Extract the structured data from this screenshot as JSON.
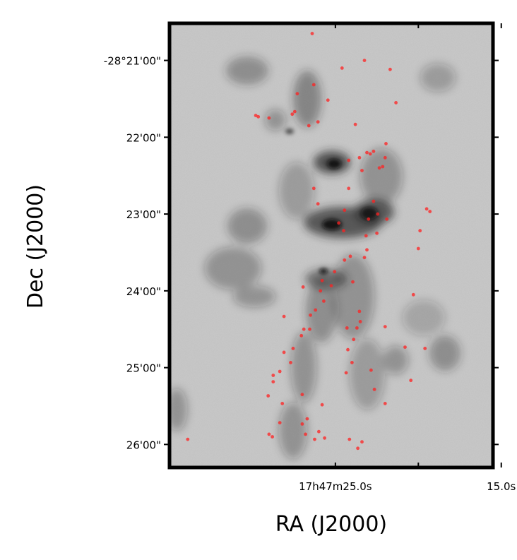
{
  "chart_data": {
    "type": "scatter",
    "title": "",
    "xlabel": "RA (J2000)",
    "ylabel": "Dec (J2000)",
    "x_unit": "arcsec offset (RA, increasing to the right = decreasing RA)",
    "xlim": [
      -20.0,
      19.0
    ],
    "ylim": [
      -29.0,
      318.0
    ],
    "x_ticks": [
      {
        "value": 0.0,
        "label": "17h47m25.0s"
      },
      {
        "value": 10.0,
        "label": ""
      },
      {
        "value": 20.0,
        "label": "15.0s"
      }
    ],
    "y_ticks": [
      {
        "value": 0,
        "label": "-28°21'00\""
      },
      {
        "value": 60,
        "label": "22'00\""
      },
      {
        "value": 120,
        "label": "23'00\""
      },
      {
        "value": 180,
        "label": "24'00\""
      },
      {
        "value": 240,
        "label": "25'00\""
      },
      {
        "value": 300,
        "label": "26'00\""
      }
    ],
    "background": "grayscale dust emission map",
    "marker_color": "#ff2020",
    "series": [
      {
        "name": "",
        "points": [
          [
            -2.8,
            -21
          ],
          [
            0.8,
            6
          ],
          [
            3.5,
            0
          ],
          [
            6.6,
            7
          ],
          [
            -4.6,
            26
          ],
          [
            -2.6,
            19
          ],
          [
            7.3,
            33
          ],
          [
            -0.9,
            31
          ],
          [
            -4.9,
            40
          ],
          [
            -5.2,
            42
          ],
          [
            -9.3,
            44
          ],
          [
            -9.6,
            43
          ],
          [
            -8.0,
            45
          ],
          [
            -3.2,
            51
          ],
          [
            -2.1,
            48
          ],
          [
            2.4,
            50
          ],
          [
            6.1,
            65
          ],
          [
            4.6,
            71
          ],
          [
            4.2,
            73
          ],
          [
            3.8,
            72
          ],
          [
            1.6,
            78
          ],
          [
            2.9,
            76
          ],
          [
            6.0,
            76
          ],
          [
            5.7,
            83
          ],
          [
            3.2,
            86
          ],
          [
            5.3,
            84
          ],
          [
            1.6,
            100
          ],
          [
            -2.6,
            100
          ],
          [
            -2.1,
            112
          ],
          [
            5.1,
            120
          ],
          [
            1.1,
            117
          ],
          [
            11.0,
            116
          ],
          [
            1.0,
            133
          ],
          [
            11.4,
            118
          ],
          [
            0.4,
            127
          ],
          [
            4.0,
            124
          ],
          [
            6.2,
            124
          ],
          [
            5.0,
            135
          ],
          [
            3.8,
            148
          ],
          [
            3.5,
            154
          ],
          [
            1.8,
            153
          ],
          [
            1.1,
            156
          ],
          [
            -0.1,
            165
          ],
          [
            2.1,
            173
          ],
          [
            -0.5,
            176
          ],
          [
            -1.6,
            172
          ],
          [
            -1.8,
            180
          ],
          [
            -1.4,
            188
          ],
          [
            -2.4,
            195
          ],
          [
            -3.0,
            199
          ],
          [
            -3.8,
            210
          ],
          [
            -4.1,
            215
          ],
          [
            -5.1,
            225
          ],
          [
            -6.2,
            228
          ],
          [
            -5.4,
            236
          ],
          [
            -6.7,
            243
          ],
          [
            -7.5,
            251
          ],
          [
            -8.1,
            262
          ],
          [
            -6.4,
            268
          ],
          [
            -6.7,
            283
          ],
          [
            -8.0,
            292
          ],
          [
            -7.6,
            294
          ],
          [
            -3.6,
            292
          ],
          [
            -2.5,
            296
          ],
          [
            -2.0,
            290
          ],
          [
            -1.3,
            295
          ],
          [
            -4.0,
            284
          ],
          [
            -3.4,
            280
          ],
          [
            -1.6,
            269
          ],
          [
            1.3,
            244
          ],
          [
            2.0,
            236
          ],
          [
            1.5,
            226
          ],
          [
            2.2,
            218
          ],
          [
            1.4,
            209
          ],
          [
            2.6,
            209
          ],
          [
            3.0,
            204
          ],
          [
            6.0,
            208
          ],
          [
            4.3,
            242
          ],
          [
            4.7,
            257
          ],
          [
            1.7,
            296
          ],
          [
            2.7,
            303
          ],
          [
            3.2,
            298
          ],
          [
            -17.8,
            296
          ],
          [
            -6.2,
            200
          ],
          [
            -3.9,
            177
          ],
          [
            9.4,
            183
          ],
          [
            10.0,
            147
          ],
          [
            10.8,
            225
          ],
          [
            9.1,
            250
          ],
          [
            10.2,
            133
          ],
          [
            8.4,
            224
          ],
          [
            6.0,
            268
          ],
          [
            -4.0,
            261
          ],
          [
            -7.5,
            246
          ],
          [
            -3.1,
            210
          ],
          [
            3.7,
            137
          ],
          [
            2.9,
            196
          ],
          [
            4.6,
            110
          ]
        ]
      }
    ]
  }
}
